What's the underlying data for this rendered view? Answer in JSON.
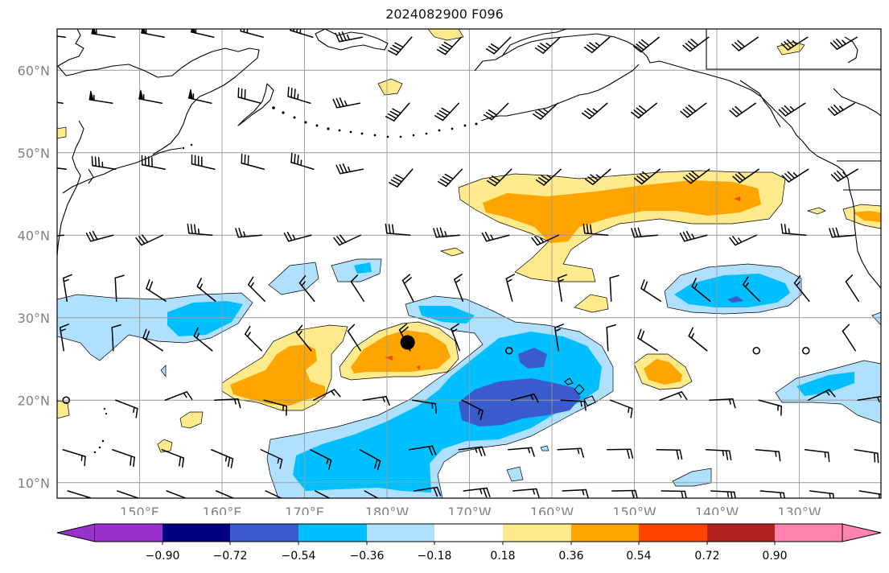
{
  "title": "2024082900 F096",
  "map": {
    "lat_labels": [
      "60°N",
      "50°N",
      "40°N",
      "30°N",
      "20°N",
      "10°N"
    ],
    "lon_labels": [
      "150°E",
      "160°E",
      "170°E",
      "180°W",
      "170°W",
      "160°W",
      "150°W",
      "140°W",
      "130°W"
    ],
    "label_color": "#808080",
    "grid_color": "#9a9a9a",
    "coast_color": "#000000",
    "marker": {
      "lon": 182.5,
      "lat": 27.0,
      "color": "#000000"
    }
  },
  "colorbar": {
    "levels": [
      "−0.90",
      "−0.72",
      "−0.54",
      "−0.36",
      "−0.18",
      "0.18",
      "0.36",
      "0.54",
      "0.72",
      "0.90"
    ],
    "colors": [
      "#9932cc",
      "#000080",
      "#3a5bcb",
      "#00bfff",
      "#b0e0ff",
      "#ffffff",
      "#ffeb8c",
      "#ffa500",
      "#ff4500",
      "#b22222",
      "#ff85b0"
    ]
  },
  "shading_colors": {
    "neg_018": "#b0e0ff",
    "neg_036": "#00bfff",
    "neg_054": "#3a5bcb",
    "pos_018": "#ffeb8c",
    "pos_036": "#ffa500",
    "pos_054": "#ff4500"
  }
}
